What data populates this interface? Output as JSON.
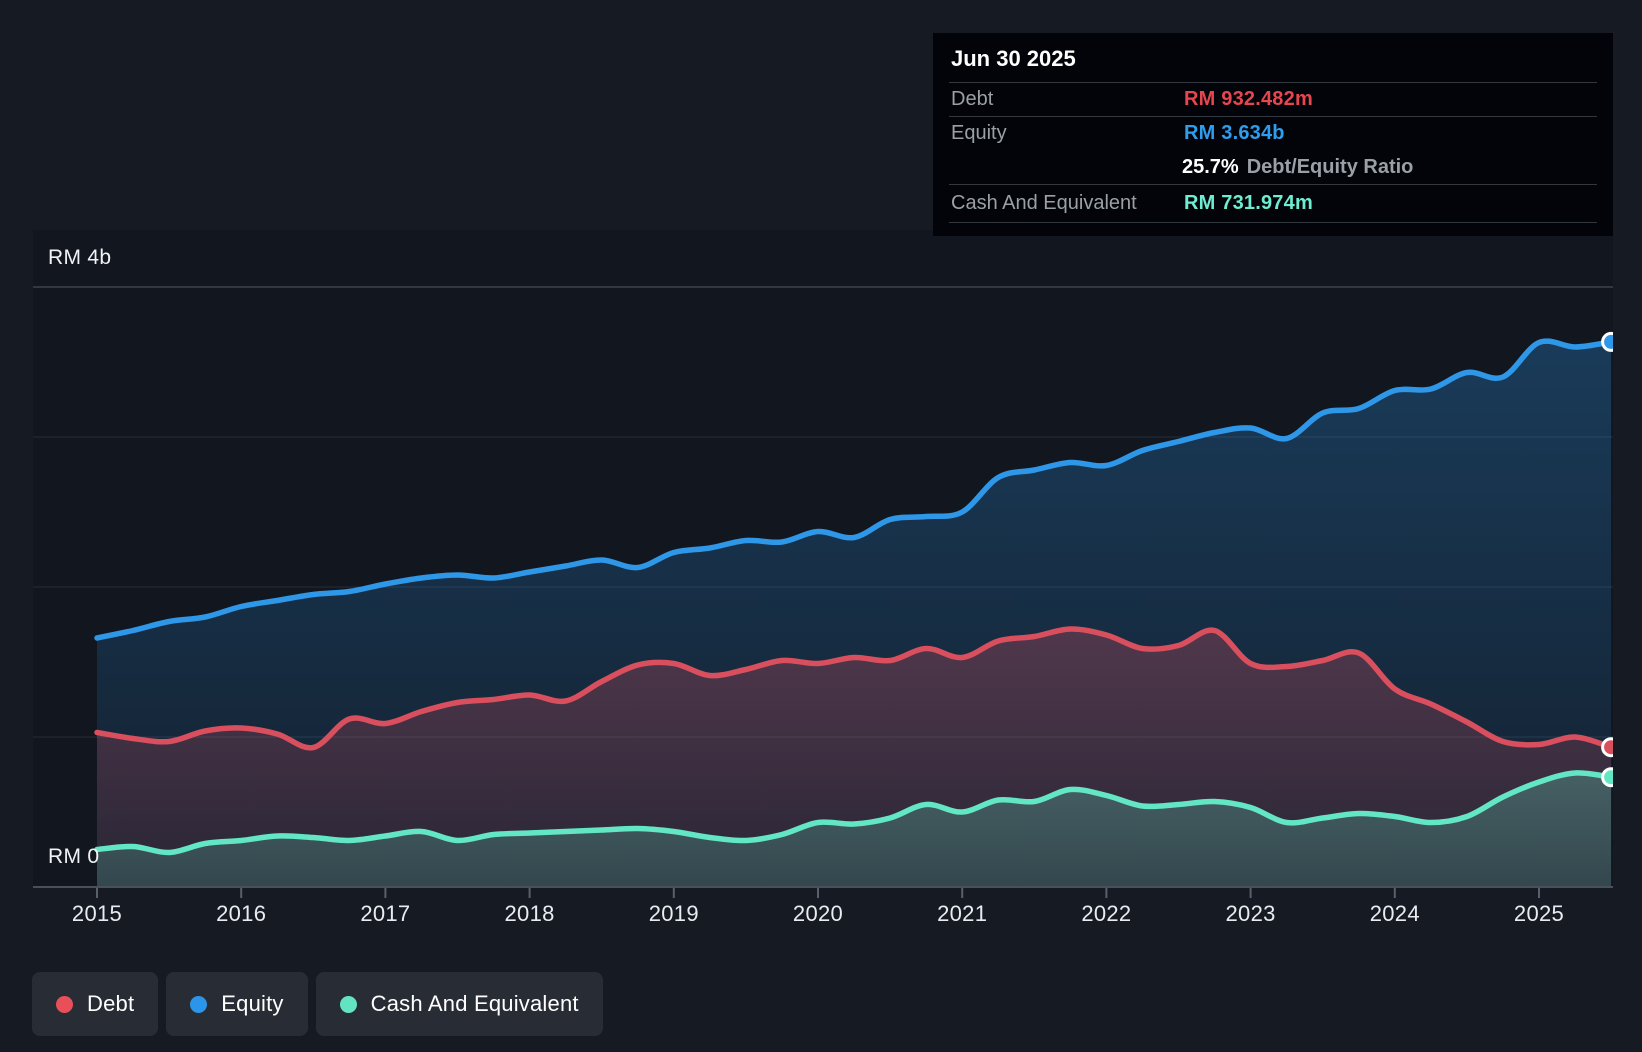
{
  "y_axis": {
    "top_label": "RM 4b",
    "bottom_label": "RM 0"
  },
  "x_axis": {
    "years": [
      "2015",
      "2016",
      "2017",
      "2018",
      "2019",
      "2020",
      "2021",
      "2022",
      "2023",
      "2024",
      "2025"
    ]
  },
  "tooltip": {
    "date": "Jun 30 2025",
    "debt_label": "Debt",
    "debt_value": "RM 932.482m",
    "equity_label": "Equity",
    "equity_value": "RM 3.634b",
    "ratio_value": "25.7%",
    "ratio_label": "Debt/Equity Ratio",
    "cash_label": "Cash And Equivalent",
    "cash_value": "RM 731.974m"
  },
  "legend": {
    "items": [
      {
        "label": "Debt",
        "color": "#e84f58"
      },
      {
        "label": "Equity",
        "color": "#2b95ea"
      },
      {
        "label": "Cash And Equivalent",
        "color": "#62e3c2"
      }
    ]
  },
  "chart_data": {
    "type": "area",
    "unit": "RM billions",
    "ylim": [
      0,
      4
    ],
    "y_gridline_values": [
      0,
      1,
      2,
      3,
      4
    ],
    "y_axis_labels": {
      "top": "RM 4b",
      "bottom": "RM 0"
    },
    "x_tick_years": [
      2015,
      2016,
      2017,
      2018,
      2019,
      2020,
      2021,
      2022,
      2023,
      2024,
      2025
    ],
    "grid": true,
    "legend_position": "bottom-left",
    "x": [
      2015,
      2015.25,
      2015.5,
      2015.75,
      2016,
      2016.25,
      2016.5,
      2016.75,
      2017,
      2017.25,
      2017.5,
      2017.75,
      2018,
      2018.25,
      2018.5,
      2018.75,
      2019,
      2019.25,
      2019.5,
      2019.75,
      2020,
      2020.25,
      2020.5,
      2020.75,
      2021,
      2021.25,
      2021.5,
      2021.75,
      2022,
      2022.25,
      2022.5,
      2022.75,
      2023,
      2023.25,
      2023.5,
      2023.75,
      2024,
      2024.25,
      2024.5,
      2024.75,
      2025,
      2025.25,
      2025.5
    ],
    "series": [
      {
        "name": "Equity",
        "line_color": "#2e97e8",
        "fill_color": "47,151,234",
        "values": [
          1.66,
          1.71,
          1.77,
          1.8,
          1.87,
          1.91,
          1.95,
          1.97,
          2.02,
          2.06,
          2.08,
          2.06,
          2.1,
          2.14,
          2.18,
          2.13,
          2.23,
          2.26,
          2.31,
          2.3,
          2.37,
          2.33,
          2.45,
          2.47,
          2.5,
          2.73,
          2.78,
          2.83,
          2.81,
          2.91,
          2.97,
          3.03,
          3.06,
          2.99,
          3.16,
          3.19,
          3.31,
          3.32,
          3.43,
          3.4,
          3.63,
          3.6,
          3.634
        ],
        "last_value_label": "RM 3.634b"
      },
      {
        "name": "Debt",
        "line_color": "#d94f5e",
        "fill_color": "220,80,95",
        "values": [
          1.03,
          0.99,
          0.97,
          1.04,
          1.06,
          1.02,
          0.93,
          1.12,
          1.09,
          1.17,
          1.23,
          1.25,
          1.28,
          1.24,
          1.37,
          1.48,
          1.49,
          1.41,
          1.45,
          1.51,
          1.49,
          1.53,
          1.51,
          1.59,
          1.53,
          1.64,
          1.67,
          1.72,
          1.68,
          1.59,
          1.61,
          1.71,
          1.49,
          1.47,
          1.51,
          1.56,
          1.32,
          1.22,
          1.1,
          0.97,
          0.95,
          1.0,
          0.932
        ],
        "last_value_label": "RM 932.482m"
      },
      {
        "name": "Cash And Equivalent",
        "line_color": "#63e6c3",
        "fill_color": "100,227,195",
        "values": [
          0.25,
          0.27,
          0.23,
          0.29,
          0.31,
          0.34,
          0.33,
          0.31,
          0.34,
          0.37,
          0.31,
          0.35,
          0.36,
          0.37,
          0.38,
          0.39,
          0.37,
          0.33,
          0.31,
          0.35,
          0.43,
          0.42,
          0.46,
          0.55,
          0.5,
          0.58,
          0.57,
          0.65,
          0.61,
          0.54,
          0.55,
          0.57,
          0.53,
          0.43,
          0.46,
          0.49,
          0.47,
          0.43,
          0.47,
          0.6,
          0.7,
          0.76,
          0.732
        ],
        "last_value_label": "RM 731.974m"
      }
    ]
  }
}
